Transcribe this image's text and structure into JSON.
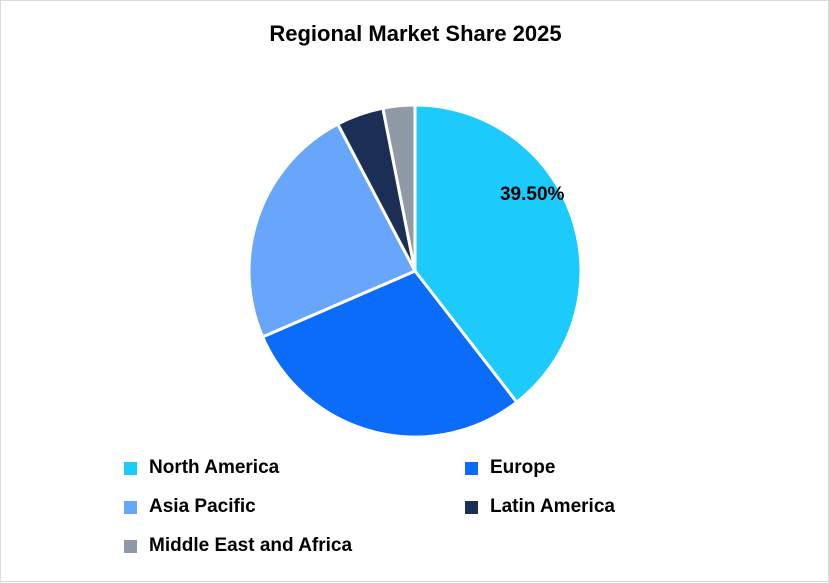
{
  "chart_data": {
    "type": "pie",
    "title": "Regional Market Share 2025",
    "categories": [
      "North America",
      "Europe",
      "Asia Pacific",
      "Latin America",
      "Middle East and Africa"
    ],
    "values": [
      39.5,
      29.0,
      23.8,
      4.6,
      3.1
    ],
    "colors": [
      "#1ccbfb",
      "#0a6cf8",
      "#67a6fb",
      "#1b2f55",
      "#8f9aa6"
    ],
    "data_labels": [
      {
        "category": "North America",
        "text": "39.50%"
      }
    ],
    "legend_position": "bottom"
  }
}
